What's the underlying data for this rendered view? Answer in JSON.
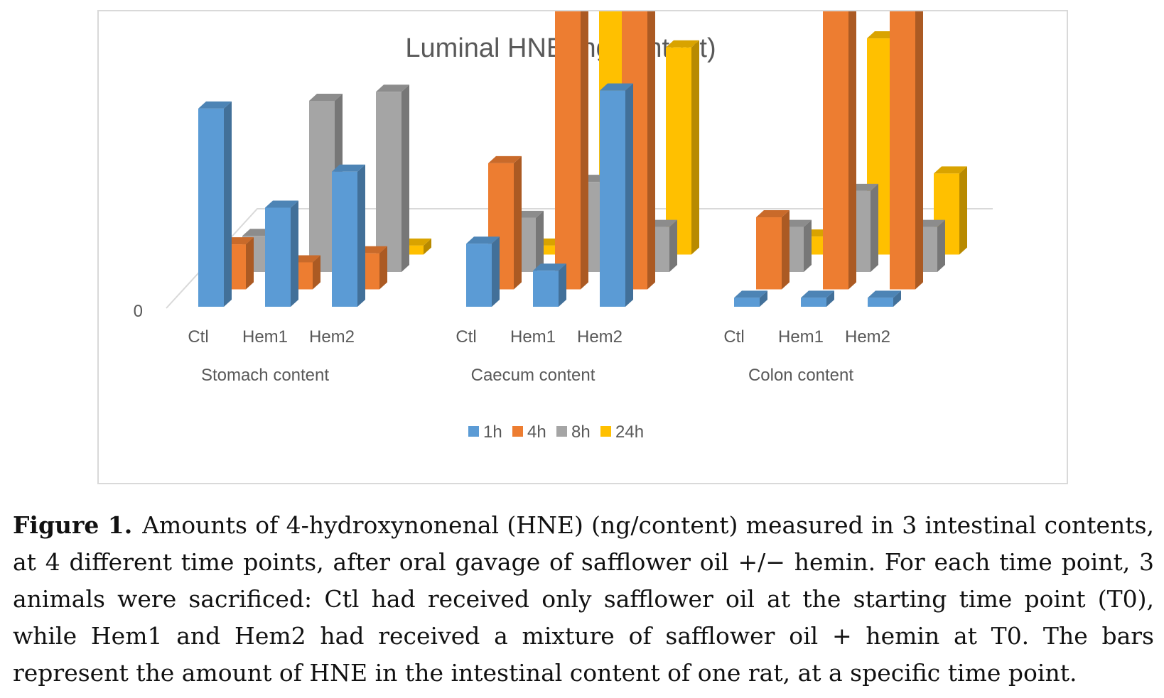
{
  "chart_data": {
    "type": "bar",
    "title": "Luminal HNE (ng/content)",
    "groups": [
      "Stomach content",
      "Caecum content",
      "Colon content"
    ],
    "categories": [
      "Ctl",
      "Hem1",
      "Hem2"
    ],
    "y_ticks": [
      "0",
      "200",
      "400",
      "600"
    ],
    "ylim": [
      0,
      600
    ],
    "legend_position": "bottom",
    "series": [
      {
        "name": "1h",
        "color": "#5B9BD5",
        "values": [
          [
            110,
            55,
            75
          ],
          [
            35,
            20,
            120
          ],
          [
            5,
            5,
            5
          ]
        ]
      },
      {
        "name": "4h",
        "color": "#ED7D31",
        "values": [
          [
            25,
            15,
            20
          ],
          [
            70,
            570,
            210
          ],
          [
            40,
            180,
            390
          ]
        ]
      },
      {
        "name": "8h",
        "color": "#A5A5A5",
        "values": [
          [
            20,
            95,
            100
          ],
          [
            30,
            50,
            25
          ],
          [
            25,
            45,
            25
          ]
        ]
      },
      {
        "name": "24h",
        "color": "#FFC000",
        "values": [
          [
            5,
            20,
            5
          ],
          [
            5,
            145,
            115
          ],
          [
            10,
            120,
            45
          ]
        ]
      }
    ]
  },
  "caption": {
    "label": "Figure 1.",
    "text": "Amounts of 4-hydroxynonenal (HNE) (ng/content) measured in 3 intestinal contents, at 4 different time points, after oral gavage of safflower oil +/− hemin. For each time point, 3 animals were sacrificed: Ctl had received only safflower oil at the starting time point (T0), while Hem1 and Hem2 had received a mixture of safflower oil + hemin at T0. The bars represent the amount of HNE in the intestinal content of one rat, at a specific time point."
  }
}
